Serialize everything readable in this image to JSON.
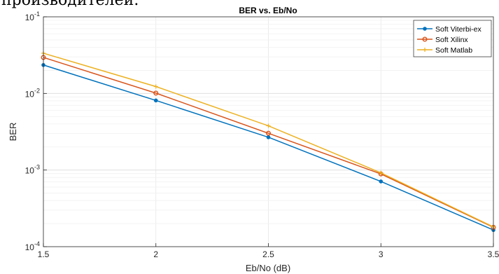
{
  "page_text": "производителей.",
  "chart_data": {
    "type": "line",
    "title": "BER vs. Eb/No",
    "xlabel": "Eb/No (dB)",
    "ylabel": "BER",
    "xlim": [
      1.5,
      3.5
    ],
    "ylim": [
      0.0001,
      0.1
    ],
    "yscale": "log",
    "grid": true,
    "legend_position": "top-right",
    "x": [
      1.5,
      2,
      2.5,
      3,
      3.5
    ],
    "xticks": [
      "1.5",
      "2",
      "2.5",
      "3",
      "3.5"
    ],
    "yticks": [
      {
        "base": "10",
        "exp": "-4",
        "value": 0.0001
      },
      {
        "base": "10",
        "exp": "-3",
        "value": 0.001
      },
      {
        "base": "10",
        "exp": "-2",
        "value": 0.01
      },
      {
        "base": "10",
        "exp": "-1",
        "value": 0.1
      }
    ],
    "series": [
      {
        "name": "Soft Viterbi-ex",
        "color": "#0072BD",
        "marker": "dot",
        "values": [
          0.0235,
          0.0081,
          0.00268,
          0.00071,
          0.000165
        ]
      },
      {
        "name": "Soft Xilinx",
        "color": "#D95319",
        "marker": "circle",
        "values": [
          0.0295,
          0.0101,
          0.00302,
          0.00089,
          0.000179
        ]
      },
      {
        "name": "Soft Matlab",
        "color": "#EDB120",
        "marker": "plus",
        "values": [
          0.0335,
          0.0123,
          0.00378,
          0.00092,
          0.000181
        ]
      }
    ]
  }
}
